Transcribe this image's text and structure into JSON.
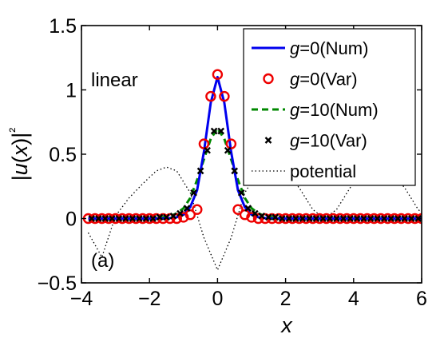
{
  "chart_data": {
    "type": "line",
    "xlabel": "x",
    "ylabel": "|u(x)|²",
    "xlim": [
      -4,
      6
    ],
    "ylim": [
      -0.5,
      1.5
    ],
    "x_ticks": [
      -4,
      -2,
      0,
      2,
      4,
      6
    ],
    "x_tick_labels": [
      "−4",
      "−2",
      "0",
      "2",
      "4",
      "6"
    ],
    "y_ticks": [
      -0.5,
      0,
      0.5,
      1,
      1.5
    ],
    "y_tick_labels": [
      "−0.5",
      "0",
      "0.5",
      "1",
      "1.5"
    ],
    "grid": false,
    "legend_position": "top-right",
    "annotations": {
      "regime": "linear",
      "panel": "(a)"
    },
    "series": [
      {
        "name": "g=0(Num)",
        "style": "solid-line",
        "color": "#0000ee",
        "x": [
          -3.8,
          -1.5,
          -1.2,
          -1.0,
          -0.8,
          -0.6,
          -0.4,
          -0.2,
          0.0,
          0.2,
          0.4,
          0.6,
          0.8,
          1.0,
          1.2,
          1.5,
          6.2
        ],
        "y": [
          0,
          0,
          0.01,
          0.03,
          0.09,
          0.22,
          0.52,
          0.9,
          1.1,
          0.9,
          0.52,
          0.22,
          0.09,
          0.03,
          0.01,
          0,
          0
        ]
      },
      {
        "name": "g=0(Var)",
        "style": "open-circle",
        "color": "#ee0000",
        "x": [
          -3.8,
          -3.6,
          -3.4,
          -3.2,
          -3.0,
          -2.8,
          -2.6,
          -2.4,
          -2.2,
          -2.0,
          -1.8,
          -1.6,
          -1.4,
          -1.2,
          -1.0,
          -0.8,
          -0.6,
          -0.4,
          -0.2,
          0.0,
          0.2,
          0.4,
          0.6,
          0.8,
          1.0,
          1.2,
          1.4,
          1.6,
          1.8,
          2.0,
          2.2,
          2.4,
          2.6,
          2.8,
          3.0,
          3.2,
          3.4,
          3.6,
          3.8,
          4.0,
          4.2,
          4.4,
          4.6,
          4.8,
          5.0,
          5.2,
          5.4,
          5.6,
          5.8,
          6.0,
          6.2
        ],
        "y": [
          0,
          0,
          0,
          0,
          0,
          0,
          0,
          0,
          0,
          0,
          0,
          0,
          0,
          0,
          0.01,
          0.03,
          0.07,
          0.58,
          0.95,
          1.12,
          0.95,
          0.58,
          0.07,
          0.03,
          0.01,
          0,
          0,
          0,
          0,
          0,
          0,
          0,
          0,
          0,
          0,
          0,
          0,
          0,
          0,
          0,
          0,
          0,
          0,
          0,
          0,
          0,
          0,
          0,
          0,
          0,
          0
        ]
      },
      {
        "name": "g=10(Num)",
        "style": "dashed-line",
        "color": "#008800",
        "x": [
          -3.8,
          -2.0,
          -1.6,
          -1.4,
          -1.2,
          -1.0,
          -0.8,
          -0.6,
          -0.4,
          -0.2,
          0.0,
          0.2,
          0.4,
          0.6,
          0.8,
          1.0,
          1.2,
          1.4,
          1.6,
          2.0,
          6.2
        ],
        "y": [
          0,
          0,
          0.01,
          0.02,
          0.04,
          0.08,
          0.16,
          0.3,
          0.46,
          0.62,
          0.7,
          0.62,
          0.46,
          0.3,
          0.16,
          0.08,
          0.04,
          0.02,
          0.01,
          0,
          0
        ]
      },
      {
        "name": "g=10(Var)",
        "style": "x-marker",
        "color": "#000000",
        "x": [
          -3.7,
          -3.5,
          -3.3,
          -3.1,
          -2.9,
          -2.7,
          -2.5,
          -2.3,
          -2.1,
          -1.9,
          -1.7,
          -1.5,
          -1.3,
          -1.1,
          -0.9,
          -0.7,
          -0.5,
          -0.3,
          -0.1,
          0.1,
          0.3,
          0.5,
          0.7,
          0.9,
          1.1,
          1.3,
          1.5,
          1.7,
          1.9,
          2.1,
          2.3,
          2.5,
          2.7,
          2.9,
          3.1,
          3.3,
          3.5,
          3.7,
          3.9,
          4.1,
          4.3,
          4.5,
          4.7,
          4.9,
          5.1,
          5.3,
          5.5,
          5.7,
          5.9,
          6.1
        ],
        "y": [
          0,
          0,
          0,
          0,
          0,
          0,
          0,
          0,
          0,
          0,
          0.01,
          0.01,
          0.02,
          0.04,
          0.08,
          0.2,
          0.37,
          0.53,
          0.68,
          0.68,
          0.53,
          0.37,
          0.2,
          0.08,
          0.04,
          0.02,
          0.01,
          0.01,
          0,
          0,
          0,
          0,
          0,
          0,
          0,
          0,
          0,
          0,
          0,
          0,
          0,
          0,
          0,
          0,
          0,
          0,
          0,
          0,
          0,
          0
        ]
      },
      {
        "name": "potential",
        "style": "dotted-line",
        "color": "#000000",
        "x": [
          -3.8,
          -3.4,
          -3.0,
          -2.6,
          -2.2,
          -1.8,
          -1.5,
          -1.2,
          -0.8,
          -0.4,
          0.0,
          0.4,
          0.8,
          1.2,
          1.6,
          2.0,
          2.4,
          2.8,
          3.14,
          3.5,
          3.9,
          4.3,
          4.71,
          5.1,
          5.5,
          5.9,
          6.2
        ],
        "y": [
          -0.11,
          -0.3,
          0.02,
          0.16,
          0.27,
          0.37,
          0.4,
          0.37,
          0.2,
          -0.15,
          -0.4,
          -0.15,
          0.2,
          0.37,
          0.4,
          0.36,
          0.24,
          0.07,
          0.0,
          0.07,
          0.24,
          0.36,
          0.4,
          0.36,
          0.24,
          0.07,
          0.0
        ]
      }
    ]
  }
}
